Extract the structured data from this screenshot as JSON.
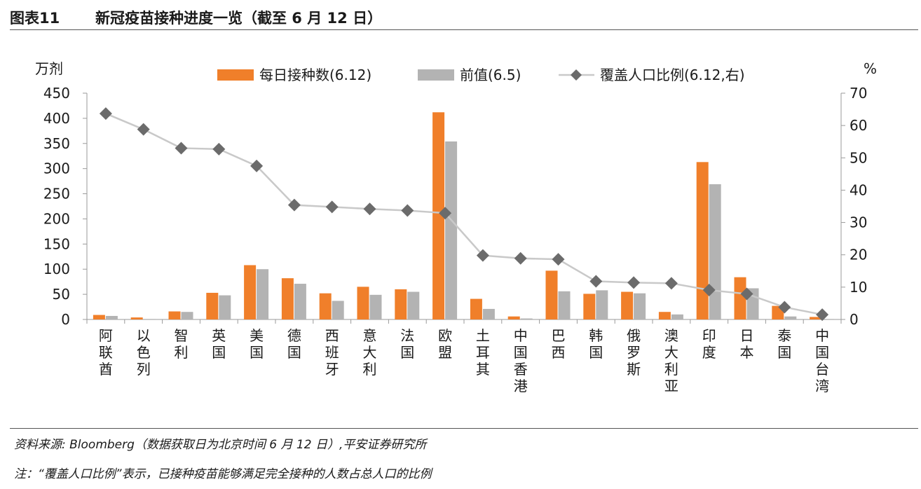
{
  "header": {
    "figure_label": "图表11",
    "title": "新冠疫苗接种进度一览（截至 6 月 12 日）"
  },
  "footer": {
    "source": "资料来源: Bloomberg（数据获取日为北京时间 6 月 12 日）,平安证券研究所",
    "note": "注：“覆盖人口比例”表示，已接种疫苗能够满足完全接种的人数占总人口的比例"
  },
  "chart_data": {
    "type": "bar",
    "categories": [
      "阿联酋",
      "以色列",
      "智利",
      "英国",
      "美国",
      "德国",
      "西班牙",
      "意大利",
      "法国",
      "欧盟",
      "土耳其",
      "中国香港",
      "巴西",
      "韩国",
      "俄罗斯",
      "澳大利亚",
      "印度",
      "日本",
      "泰国",
      "中国台湾"
    ],
    "series": [
      {
        "name": "每日接种数(6.12)",
        "type": "bar",
        "axis": "left",
        "color": "#f07f2a",
        "values": [
          9,
          4,
          16,
          53,
          108,
          82,
          52,
          65,
          60,
          412,
          41,
          6,
          97,
          51,
          55,
          15,
          313,
          84,
          27,
          5
        ]
      },
      {
        "name": "前值(6.5)",
        "type": "bar",
        "axis": "left",
        "color": "#b3b3b3",
        "values": [
          7,
          1,
          15,
          48,
          100,
          71,
          37,
          49,
          55,
          354,
          21,
          2,
          56,
          58,
          52,
          10,
          269,
          62,
          6,
          1
        ]
      },
      {
        "name": "覆盖人口比例(6.12,右)",
        "type": "line",
        "axis": "right",
        "color": "#6b6b6b",
        "line_color": "#c9c9c9",
        "values": [
          63.7,
          58.8,
          53.0,
          52.7,
          47.5,
          35.4,
          34.8,
          34.2,
          33.7,
          32.9,
          19.8,
          18.9,
          18.6,
          11.8,
          11.4,
          11.2,
          9.1,
          7.9,
          3.8,
          1.5
        ]
      }
    ],
    "left_axis": {
      "unit": "万剂",
      "ylim": [
        0,
        450
      ],
      "ticks": [
        "0",
        "50",
        "100",
        "150",
        "200",
        "250",
        "300",
        "350",
        "400",
        "450"
      ]
    },
    "right_axis": {
      "unit": "%",
      "ylim": [
        0,
        70
      ],
      "ticks": [
        "0",
        "10",
        "20",
        "30",
        "40",
        "50",
        "60",
        "70"
      ]
    },
    "grid": false,
    "legend_position": "top-center"
  }
}
